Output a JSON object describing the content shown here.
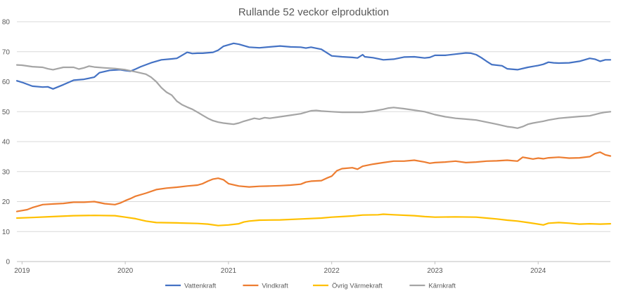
{
  "chart_data": {
    "type": "line",
    "title": "Rullande 52 veckor elproduktion",
    "xlabel": "",
    "ylabel": "",
    "ylim": [
      0,
      80
    ],
    "yticks": [
      0,
      10,
      20,
      30,
      40,
      50,
      60,
      70,
      80
    ],
    "xlim": [
      2018.95,
      2024.7
    ],
    "xticks": [
      "2019",
      "2020",
      "2021",
      "2022",
      "2023",
      "2024"
    ],
    "grid": true,
    "legend_position": "bottom",
    "series": [
      {
        "name": "Vattenkraft",
        "color": "#4472c4",
        "points": [
          [
            2018.95,
            60.3
          ],
          [
            2019.0,
            59.8
          ],
          [
            2019.1,
            58.5
          ],
          [
            2019.2,
            58.2
          ],
          [
            2019.25,
            58.3
          ],
          [
            2019.3,
            57.6
          ],
          [
            2019.4,
            59.0
          ],
          [
            2019.5,
            60.5
          ],
          [
            2019.6,
            60.8
          ],
          [
            2019.7,
            61.5
          ],
          [
            2019.75,
            63.0
          ],
          [
            2019.85,
            63.8
          ],
          [
            2019.95,
            64.0
          ],
          [
            2020.0,
            63.7
          ],
          [
            2020.05,
            63.5
          ],
          [
            2020.1,
            64.2
          ],
          [
            2020.15,
            65.0
          ],
          [
            2020.25,
            66.3
          ],
          [
            2020.35,
            67.3
          ],
          [
            2020.45,
            67.6
          ],
          [
            2020.5,
            67.8
          ],
          [
            2020.6,
            69.8
          ],
          [
            2020.65,
            69.4
          ],
          [
            2020.7,
            69.5
          ],
          [
            2020.75,
            69.5
          ],
          [
            2020.85,
            69.8
          ],
          [
            2020.9,
            70.5
          ],
          [
            2020.95,
            71.8
          ],
          [
            2021.05,
            72.8
          ],
          [
            2021.1,
            72.5
          ],
          [
            2021.2,
            71.5
          ],
          [
            2021.3,
            71.3
          ],
          [
            2021.4,
            71.6
          ],
          [
            2021.5,
            71.9
          ],
          [
            2021.6,
            71.6
          ],
          [
            2021.7,
            71.5
          ],
          [
            2021.75,
            71.2
          ],
          [
            2021.8,
            71.5
          ],
          [
            2021.9,
            70.8
          ],
          [
            2022.0,
            68.6
          ],
          [
            2022.1,
            68.3
          ],
          [
            2022.2,
            68.1
          ],
          [
            2022.25,
            67.9
          ],
          [
            2022.3,
            69.0
          ],
          [
            2022.32,
            68.3
          ],
          [
            2022.4,
            68.0
          ],
          [
            2022.5,
            67.3
          ],
          [
            2022.6,
            67.5
          ],
          [
            2022.7,
            68.2
          ],
          [
            2022.8,
            68.3
          ],
          [
            2022.9,
            67.9
          ],
          [
            2022.95,
            68.1
          ],
          [
            2023.0,
            68.8
          ],
          [
            2023.1,
            68.8
          ],
          [
            2023.2,
            69.2
          ],
          [
            2023.3,
            69.6
          ],
          [
            2023.35,
            69.5
          ],
          [
            2023.4,
            69.0
          ],
          [
            2023.45,
            68.0
          ],
          [
            2023.5,
            66.8
          ],
          [
            2023.55,
            65.7
          ],
          [
            2023.65,
            65.3
          ],
          [
            2023.7,
            64.3
          ],
          [
            2023.8,
            64.0
          ],
          [
            2023.9,
            64.8
          ],
          [
            2024.0,
            65.4
          ],
          [
            2024.05,
            65.8
          ],
          [
            2024.1,
            66.5
          ],
          [
            2024.15,
            66.3
          ],
          [
            2024.2,
            66.2
          ],
          [
            2024.3,
            66.3
          ],
          [
            2024.4,
            66.8
          ],
          [
            2024.45,
            67.3
          ],
          [
            2024.5,
            67.8
          ],
          [
            2024.55,
            67.5
          ],
          [
            2024.6,
            66.8
          ],
          [
            2024.65,
            67.3
          ],
          [
            2024.7,
            67.3
          ]
        ]
      },
      {
        "name": "Vindkraft",
        "color": "#ed7d31",
        "points": [
          [
            2018.95,
            16.7
          ],
          [
            2019.0,
            17.0
          ],
          [
            2019.05,
            17.3
          ],
          [
            2019.1,
            18.0
          ],
          [
            2019.15,
            18.5
          ],
          [
            2019.2,
            19.0
          ],
          [
            2019.3,
            19.2
          ],
          [
            2019.4,
            19.4
          ],
          [
            2019.5,
            19.8
          ],
          [
            2019.6,
            19.8
          ],
          [
            2019.7,
            20.0
          ],
          [
            2019.8,
            19.3
          ],
          [
            2019.9,
            19.0
          ],
          [
            2019.95,
            19.5
          ],
          [
            2020.0,
            20.3
          ],
          [
            2020.05,
            21.0
          ],
          [
            2020.1,
            21.8
          ],
          [
            2020.2,
            22.8
          ],
          [
            2020.3,
            24.0
          ],
          [
            2020.4,
            24.5
          ],
          [
            2020.5,
            24.8
          ],
          [
            2020.6,
            25.2
          ],
          [
            2020.7,
            25.5
          ],
          [
            2020.75,
            26.0
          ],
          [
            2020.8,
            26.8
          ],
          [
            2020.85,
            27.5
          ],
          [
            2020.9,
            27.8
          ],
          [
            2020.95,
            27.3
          ],
          [
            2021.0,
            26.0
          ],
          [
            2021.1,
            25.2
          ],
          [
            2021.2,
            24.9
          ],
          [
            2021.3,
            25.1
          ],
          [
            2021.4,
            25.2
          ],
          [
            2021.5,
            25.3
          ],
          [
            2021.6,
            25.5
          ],
          [
            2021.7,
            25.8
          ],
          [
            2021.75,
            26.5
          ],
          [
            2021.8,
            26.8
          ],
          [
            2021.9,
            27.0
          ],
          [
            2021.95,
            27.8
          ],
          [
            2022.0,
            28.5
          ],
          [
            2022.05,
            30.3
          ],
          [
            2022.1,
            31.0
          ],
          [
            2022.2,
            31.3
          ],
          [
            2022.25,
            30.8
          ],
          [
            2022.3,
            31.8
          ],
          [
            2022.4,
            32.5
          ],
          [
            2022.5,
            33.0
          ],
          [
            2022.6,
            33.5
          ],
          [
            2022.7,
            33.5
          ],
          [
            2022.8,
            33.8
          ],
          [
            2022.9,
            33.2
          ],
          [
            2022.95,
            32.8
          ],
          [
            2023.0,
            33.0
          ],
          [
            2023.1,
            33.2
          ],
          [
            2023.2,
            33.5
          ],
          [
            2023.3,
            33.0
          ],
          [
            2023.4,
            33.2
          ],
          [
            2023.5,
            33.5
          ],
          [
            2023.6,
            33.6
          ],
          [
            2023.7,
            33.8
          ],
          [
            2023.8,
            33.5
          ],
          [
            2023.85,
            34.8
          ],
          [
            2023.9,
            34.5
          ],
          [
            2023.95,
            34.2
          ],
          [
            2024.0,
            34.5
          ],
          [
            2024.05,
            34.3
          ],
          [
            2024.1,
            34.6
          ],
          [
            2024.2,
            34.8
          ],
          [
            2024.3,
            34.5
          ],
          [
            2024.4,
            34.6
          ],
          [
            2024.5,
            35.0
          ],
          [
            2024.55,
            36.0
          ],
          [
            2024.6,
            36.5
          ],
          [
            2024.65,
            35.6
          ],
          [
            2024.7,
            35.2
          ]
        ]
      },
      {
        "name": "Övrig Värmekraft",
        "color": "#ffc000",
        "points": [
          [
            2018.95,
            14.5
          ],
          [
            2019.1,
            14.7
          ],
          [
            2019.3,
            15.0
          ],
          [
            2019.5,
            15.3
          ],
          [
            2019.7,
            15.4
          ],
          [
            2019.9,
            15.3
          ],
          [
            2020.0,
            14.8
          ],
          [
            2020.1,
            14.3
          ],
          [
            2020.2,
            13.5
          ],
          [
            2020.3,
            13.0
          ],
          [
            2020.5,
            12.9
          ],
          [
            2020.7,
            12.7
          ],
          [
            2020.8,
            12.5
          ],
          [
            2020.9,
            12.0
          ],
          [
            2021.0,
            12.2
          ],
          [
            2021.1,
            12.6
          ],
          [
            2021.15,
            13.2
          ],
          [
            2021.2,
            13.5
          ],
          [
            2021.3,
            13.8
          ],
          [
            2021.5,
            13.9
          ],
          [
            2021.7,
            14.2
          ],
          [
            2021.9,
            14.5
          ],
          [
            2022.0,
            14.8
          ],
          [
            2022.1,
            15.0
          ],
          [
            2022.2,
            15.2
          ],
          [
            2022.3,
            15.5
          ],
          [
            2022.45,
            15.6
          ],
          [
            2022.5,
            15.8
          ],
          [
            2022.6,
            15.6
          ],
          [
            2022.8,
            15.3
          ],
          [
            2022.9,
            15.0
          ],
          [
            2023.0,
            14.8
          ],
          [
            2023.2,
            14.9
          ],
          [
            2023.4,
            14.8
          ],
          [
            2023.5,
            14.5
          ],
          [
            2023.6,
            14.2
          ],
          [
            2023.7,
            13.8
          ],
          [
            2023.8,
            13.5
          ],
          [
            2023.9,
            13.0
          ],
          [
            2024.0,
            12.5
          ],
          [
            2024.05,
            12.2
          ],
          [
            2024.1,
            12.8
          ],
          [
            2024.2,
            13.0
          ],
          [
            2024.3,
            12.8
          ],
          [
            2024.4,
            12.5
          ],
          [
            2024.5,
            12.6
          ],
          [
            2024.6,
            12.5
          ],
          [
            2024.7,
            12.6
          ]
        ]
      },
      {
        "name": "Kärnkraft",
        "color": "#a5a5a5",
        "points": [
          [
            2018.95,
            65.6
          ],
          [
            2019.0,
            65.5
          ],
          [
            2019.1,
            65.0
          ],
          [
            2019.2,
            64.8
          ],
          [
            2019.25,
            64.3
          ],
          [
            2019.3,
            64.0
          ],
          [
            2019.4,
            64.8
          ],
          [
            2019.5,
            64.8
          ],
          [
            2019.55,
            64.2
          ],
          [
            2019.6,
            64.6
          ],
          [
            2019.65,
            65.2
          ],
          [
            2019.7,
            64.9
          ],
          [
            2019.8,
            64.6
          ],
          [
            2019.9,
            64.4
          ],
          [
            2020.0,
            64.0
          ],
          [
            2020.1,
            63.3
          ],
          [
            2020.2,
            62.5
          ],
          [
            2020.25,
            61.5
          ],
          [
            2020.3,
            60.0
          ],
          [
            2020.35,
            58.0
          ],
          [
            2020.4,
            56.5
          ],
          [
            2020.45,
            55.5
          ],
          [
            2020.5,
            53.5
          ],
          [
            2020.55,
            52.3
          ],
          [
            2020.6,
            51.5
          ],
          [
            2020.65,
            50.8
          ],
          [
            2020.7,
            49.8
          ],
          [
            2020.75,
            48.8
          ],
          [
            2020.8,
            47.8
          ],
          [
            2020.85,
            47.0
          ],
          [
            2020.9,
            46.5
          ],
          [
            2020.95,
            46.2
          ],
          [
            2021.0,
            46.0
          ],
          [
            2021.05,
            45.8
          ],
          [
            2021.1,
            46.2
          ],
          [
            2021.15,
            46.8
          ],
          [
            2021.2,
            47.3
          ],
          [
            2021.25,
            47.8
          ],
          [
            2021.3,
            47.5
          ],
          [
            2021.35,
            48.0
          ],
          [
            2021.4,
            47.8
          ],
          [
            2021.5,
            48.3
          ],
          [
            2021.6,
            48.8
          ],
          [
            2021.7,
            49.3
          ],
          [
            2021.75,
            49.8
          ],
          [
            2021.8,
            50.3
          ],
          [
            2021.85,
            50.4
          ],
          [
            2021.9,
            50.2
          ],
          [
            2022.0,
            50.0
          ],
          [
            2022.1,
            49.8
          ],
          [
            2022.2,
            49.8
          ],
          [
            2022.3,
            49.8
          ],
          [
            2022.4,
            50.2
          ],
          [
            2022.5,
            50.8
          ],
          [
            2022.55,
            51.2
          ],
          [
            2022.6,
            51.4
          ],
          [
            2022.7,
            51.0
          ],
          [
            2022.8,
            50.5
          ],
          [
            2022.9,
            50.0
          ],
          [
            2023.0,
            49.0
          ],
          [
            2023.1,
            48.3
          ],
          [
            2023.2,
            47.8
          ],
          [
            2023.3,
            47.5
          ],
          [
            2023.4,
            47.2
          ],
          [
            2023.5,
            46.5
          ],
          [
            2023.6,
            45.8
          ],
          [
            2023.7,
            45.0
          ],
          [
            2023.75,
            44.8
          ],
          [
            2023.8,
            44.5
          ],
          [
            2023.85,
            45.0
          ],
          [
            2023.9,
            45.8
          ],
          [
            2023.95,
            46.2
          ],
          [
            2024.0,
            46.5
          ],
          [
            2024.05,
            46.8
          ],
          [
            2024.1,
            47.2
          ],
          [
            2024.2,
            47.8
          ],
          [
            2024.3,
            48.1
          ],
          [
            2024.4,
            48.4
          ],
          [
            2024.5,
            48.6
          ],
          [
            2024.6,
            49.5
          ],
          [
            2024.65,
            49.8
          ],
          [
            2024.7,
            50.0
          ]
        ]
      }
    ]
  }
}
